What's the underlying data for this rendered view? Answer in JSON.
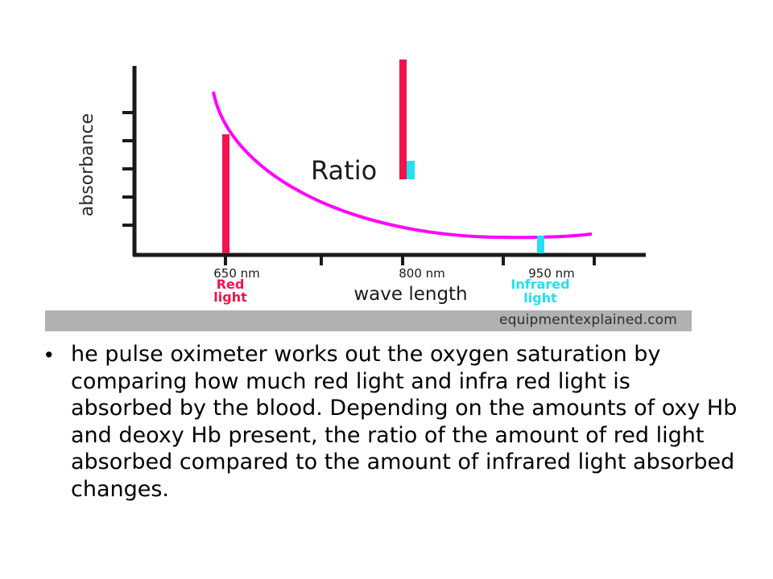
{
  "axis": {
    "y_label": "absorbance",
    "x_label": "wave length"
  },
  "ticks": [
    {
      "label": "650 nm",
      "wavelength_nm": 650
    },
    {
      "label": "800 nm",
      "wavelength_nm": 800
    },
    {
      "label": "950 nm",
      "wavelength_nm": 950
    }
  ],
  "light_labels": {
    "red": [
      "Red",
      "light"
    ],
    "infrared": [
      "Infrared",
      "light"
    ]
  },
  "ratio_label": "Ratio",
  "credit": "equipmentexplained.com",
  "bullet_text": "he pulse oximeter works out the oxygen saturation by comparing how much red light and infra red light is absorbed by the blood. Depending on the amounts of oxy Hb and deoxy Hb present, the ratio of the amount of red light absorbed compared to the amount of infrared light absorbed changes.",
  "colors": {
    "red_light": "#f0134d",
    "infrared_light": "#22e0f0",
    "curve": "#ff00ff",
    "axis": "#1a1a1a",
    "credit_strip": "#b1b1b1"
  }
}
